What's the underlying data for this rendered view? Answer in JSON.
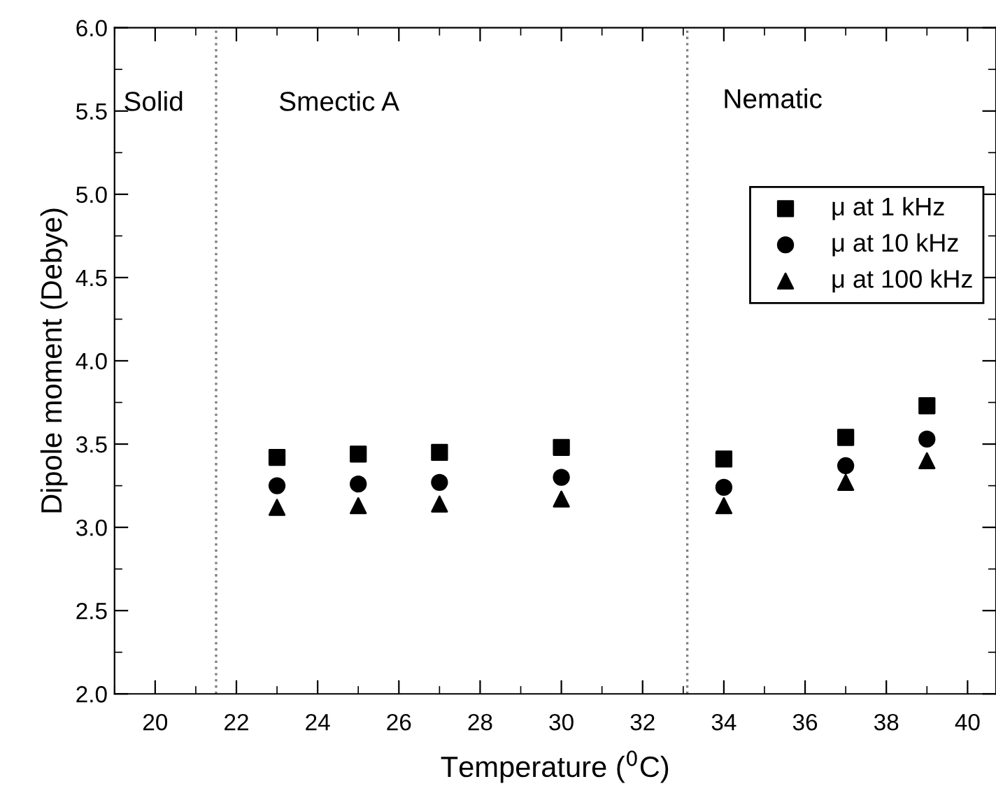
{
  "chart_data": {
    "type": "scatter",
    "xlabel": "Temperature ($^{0}$C)",
    "ylabel": "Dipole moment (Debye)",
    "x": [
      23,
      25,
      27,
      30,
      34,
      37,
      39
    ],
    "series": [
      {
        "name": "μ at 1 kHz",
        "color": "#000000",
        "marker": "square",
        "values": [
          3.42,
          3.44,
          3.45,
          3.48,
          3.41,
          3.54,
          3.73
        ]
      },
      {
        "name": "μ at 10 kHz",
        "color": "#000000",
        "marker": "circle",
        "values": [
          3.25,
          3.26,
          3.27,
          3.3,
          3.24,
          3.37,
          3.53
        ]
      },
      {
        "name": "μ at 100 kHz",
        "color": "#000000",
        "marker": "triangle",
        "values": [
          3.12,
          3.13,
          3.14,
          3.17,
          3.13,
          3.27,
          3.4
        ]
      }
    ],
    "xlim": [
      19,
      40.7
    ],
    "xticks": [
      20,
      22,
      24,
      26,
      28,
      30,
      32,
      34,
      36,
      38,
      40
    ],
    "ylim": [
      2.0,
      6.0
    ],
    "yticks": [
      {
        "value": 2.0,
        "label": "2.0"
      },
      {
        "value": 2.5,
        "label": "2.5"
      },
      {
        "value": 3.0,
        "label": "3.0"
      },
      {
        "value": 3.5,
        "label": "3.5"
      },
      {
        "value": 4.0,
        "label": "4.0"
      },
      {
        "value": 4.5,
        "label": "4.5"
      },
      {
        "value": 5.0,
        "label": "5.0"
      },
      {
        "value": 5.5,
        "label": "5.5"
      },
      {
        "value": 6.0,
        "label": "6.0"
      }
    ],
    "ref_lines": [
      {
        "axis": "x",
        "value": 21.5,
        "color": "#808080",
        "line_style": "dotted"
      },
      {
        "axis": "x",
        "value": 33.1,
        "color": "#808080",
        "line_style": "dotted"
      }
    ],
    "annotations": [
      "Solid",
      "Smectic A",
      "Nematic"
    ],
    "legend": "top right",
    "grid": false
  }
}
